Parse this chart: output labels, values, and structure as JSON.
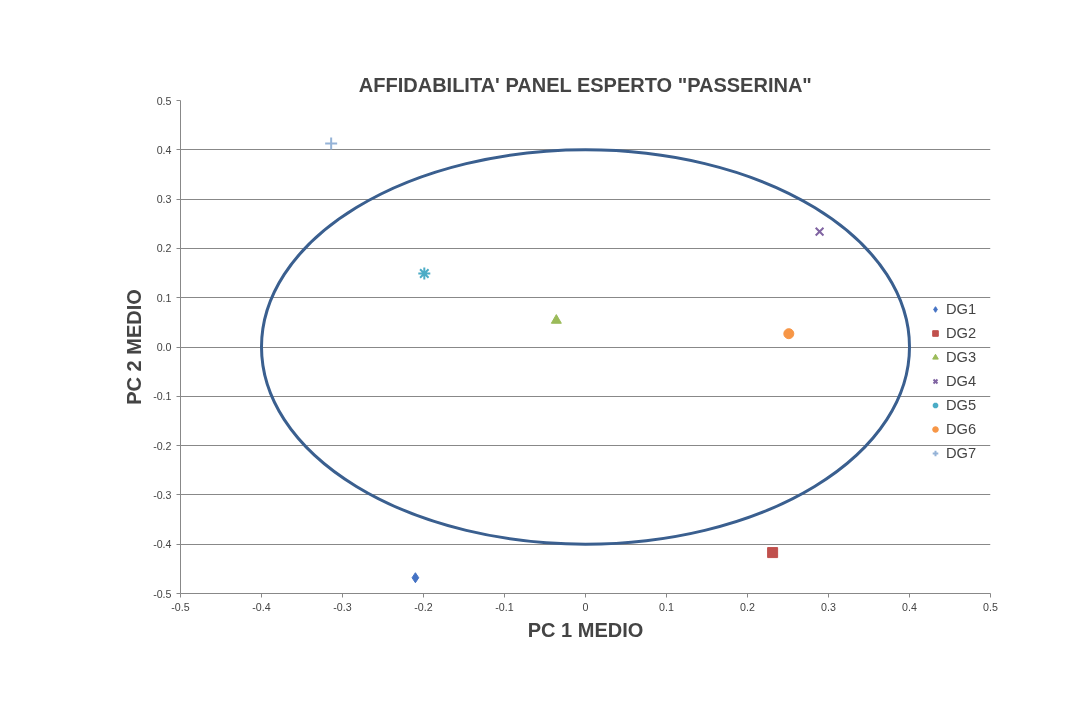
{
  "chart_data": {
    "type": "scatter",
    "title": "AFFIDABILITA' PANEL ESPERTO \"PASSERINA\"",
    "xlabel": "PC 1 MEDIO",
    "ylabel": "PC 2 MEDIO",
    "xlim": [
      -0.5,
      0.5
    ],
    "ylim": [
      -0.5,
      0.5
    ],
    "xticks": [
      -0.5,
      -0.4,
      -0.3,
      -0.2,
      -0.1,
      0,
      0.1,
      0.2,
      0.3,
      0.4,
      0.5
    ],
    "yticks": [
      -0.5,
      -0.4,
      -0.3,
      -0.2,
      -0.1,
      {
        "value": 0,
        "label": "0.0"
      },
      0.1,
      0.2,
      0.3,
      0.4,
      0.5
    ],
    "grid": "y",
    "legend": "right",
    "series": [
      {
        "name": "DG1",
        "color": "#4472c4",
        "marker": "diamond",
        "x": [
          -0.21
        ],
        "values": [
          -0.468
        ]
      },
      {
        "name": "DG2",
        "color": "#c0504d",
        "marker": "square",
        "x": [
          0.231
        ],
        "values": [
          -0.417
        ]
      },
      {
        "name": "DG3",
        "color": "#9bbb59",
        "marker": "triangle",
        "x": [
          -0.036
        ],
        "values": [
          0.054
        ]
      },
      {
        "name": "DG4",
        "color": "#8064a2",
        "marker": "x",
        "x": [
          0.289
        ],
        "values": [
          0.234
        ]
      },
      {
        "name": "DG5",
        "color": "#4bacc6",
        "marker": "cross",
        "x": [
          -0.199
        ],
        "values": [
          0.149
        ]
      },
      {
        "name": "DG6",
        "color": "#f79646",
        "marker": "circle",
        "x": [
          0.251
        ],
        "values": [
          0.027
        ]
      },
      {
        "name": "DG7",
        "color": "#95b3d7",
        "marker": "cross",
        "x": [
          -0.314
        ],
        "values": [
          0.413
        ]
      }
    ]
  }
}
